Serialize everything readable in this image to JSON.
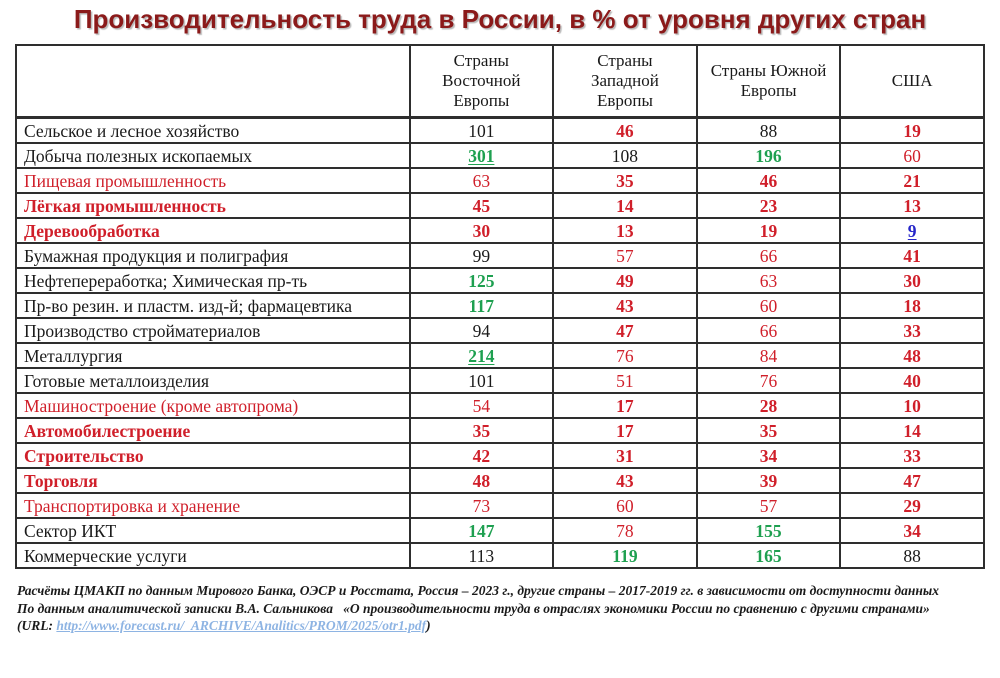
{
  "title": "Производительность труда в России, в % от уровня других стран",
  "colors": {
    "title_dark_red": "#8b1a1a",
    "value_red": "#d01f2a",
    "value_green": "#1ea050",
    "value_blue": "#2626c9",
    "text_black": "#1a1a1a",
    "link_blue": "#8eb4e3",
    "border": "#2e2e2e"
  },
  "table": {
    "columns": [
      "",
      "Страны Восточной Европы",
      "Страны Западной Европы",
      "Страны Южной Европы",
      "США"
    ],
    "rows": [
      {
        "label": "Сельское и лесное хозяйство",
        "label_style": "black",
        "values": [
          {
            "v": "101",
            "s": "black"
          },
          {
            "v": "46",
            "s": "red-b"
          },
          {
            "v": "88",
            "s": "black"
          },
          {
            "v": "19",
            "s": "red-b"
          }
        ]
      },
      {
        "label": "Добыча полезных ископаемых",
        "label_style": "black",
        "values": [
          {
            "v": "301",
            "s": "green-bu"
          },
          {
            "v": "108",
            "s": "black"
          },
          {
            "v": "196",
            "s": "green-b"
          },
          {
            "v": "60",
            "s": "red"
          }
        ]
      },
      {
        "label": "Пищевая промышленность",
        "label_style": "red",
        "values": [
          {
            "v": "63",
            "s": "red"
          },
          {
            "v": "35",
            "s": "red-b"
          },
          {
            "v": "46",
            "s": "red-b"
          },
          {
            "v": "21",
            "s": "red-b"
          }
        ]
      },
      {
        "label": "Лёгкая промышленность",
        "label_style": "red-b",
        "values": [
          {
            "v": "45",
            "s": "red-b"
          },
          {
            "v": "14",
            "s": "red-b"
          },
          {
            "v": "23",
            "s": "red-b"
          },
          {
            "v": "13",
            "s": "red-b"
          }
        ]
      },
      {
        "label": "Деревообработка",
        "label_style": "red-b",
        "values": [
          {
            "v": "30",
            "s": "red-b"
          },
          {
            "v": "13",
            "s": "red-b"
          },
          {
            "v": "19",
            "s": "red-b"
          },
          {
            "v": "9",
            "s": "blue-bu"
          }
        ]
      },
      {
        "label": "Бумажная продукция и полиграфия",
        "label_style": "black",
        "values": [
          {
            "v": "99",
            "s": "black"
          },
          {
            "v": "57",
            "s": "red"
          },
          {
            "v": "66",
            "s": "red"
          },
          {
            "v": "41",
            "s": "red-b"
          }
        ]
      },
      {
        "label": "Нефтепереработка; Химическая пр-ть",
        "label_style": "black",
        "values": [
          {
            "v": "125",
            "s": "green-b"
          },
          {
            "v": "49",
            "s": "red-b"
          },
          {
            "v": "63",
            "s": "red"
          },
          {
            "v": "30",
            "s": "red-b"
          }
        ]
      },
      {
        "label": "Пр-во резин. и пластм. изд-й; фармацевтика",
        "label_style": "black",
        "values": [
          {
            "v": "117",
            "s": "green-b"
          },
          {
            "v": "43",
            "s": "red-b"
          },
          {
            "v": "60",
            "s": "red"
          },
          {
            "v": "18",
            "s": "red-b"
          }
        ]
      },
      {
        "label": "Производство стройматериалов",
        "label_style": "black",
        "values": [
          {
            "v": "94",
            "s": "black"
          },
          {
            "v": "47",
            "s": "red-b"
          },
          {
            "v": "66",
            "s": "red"
          },
          {
            "v": "33",
            "s": "red-b"
          }
        ]
      },
      {
        "label": "Металлургия",
        "label_style": "black",
        "values": [
          {
            "v": "214",
            "s": "green-bu"
          },
          {
            "v": "76",
            "s": "red"
          },
          {
            "v": "84",
            "s": "red"
          },
          {
            "v": "48",
            "s": "red-b"
          }
        ]
      },
      {
        "label": "Готовые металлоизделия",
        "label_style": "black",
        "values": [
          {
            "v": "101",
            "s": "black"
          },
          {
            "v": "51",
            "s": "red"
          },
          {
            "v": "76",
            "s": "red"
          },
          {
            "v": "40",
            "s": "red-b"
          }
        ]
      },
      {
        "label": "Машиностроение (кроме автопрома)",
        "label_style": "red",
        "values": [
          {
            "v": "54",
            "s": "red"
          },
          {
            "v": "17",
            "s": "red-b"
          },
          {
            "v": "28",
            "s": "red-b"
          },
          {
            "v": "10",
            "s": "red-b"
          }
        ]
      },
      {
        "label": "Автомобилестроение",
        "label_style": "red-b",
        "values": [
          {
            "v": "35",
            "s": "red-b"
          },
          {
            "v": "17",
            "s": "red-b"
          },
          {
            "v": "35",
            "s": "red-b"
          },
          {
            "v": "14",
            "s": "red-b"
          }
        ]
      },
      {
        "label": "Строительство",
        "label_style": "red-b",
        "values": [
          {
            "v": "42",
            "s": "red-b"
          },
          {
            "v": "31",
            "s": "red-b"
          },
          {
            "v": "34",
            "s": "red-b"
          },
          {
            "v": "33",
            "s": "red-b"
          }
        ]
      },
      {
        "label": "Торговля",
        "label_style": "red-b",
        "values": [
          {
            "v": "48",
            "s": "red-b"
          },
          {
            "v": "43",
            "s": "red-b"
          },
          {
            "v": "39",
            "s": "red-b"
          },
          {
            "v": "47",
            "s": "red-b"
          }
        ]
      },
      {
        "label": "Транспортировка и хранение",
        "label_style": "red",
        "values": [
          {
            "v": "73",
            "s": "red"
          },
          {
            "v": "60",
            "s": "red"
          },
          {
            "v": "57",
            "s": "red"
          },
          {
            "v": "29",
            "s": "red-b"
          }
        ]
      },
      {
        "label": "Сектор ИКТ",
        "label_style": "black",
        "values": [
          {
            "v": "147",
            "s": "green-b"
          },
          {
            "v": "78",
            "s": "red"
          },
          {
            "v": "155",
            "s": "green-b"
          },
          {
            "v": "34",
            "s": "red-b"
          }
        ]
      },
      {
        "label": "Коммерческие услуги",
        "label_style": "black",
        "values": [
          {
            "v": "113",
            "s": "black"
          },
          {
            "v": "119",
            "s": "green-b"
          },
          {
            "v": "165",
            "s": "green-b"
          },
          {
            "v": "88",
            "s": "black"
          }
        ]
      }
    ]
  },
  "footnotes": [
    "Расчёты ЦМАКП по данным Мирового Банка, ОЭСР и Росстата, Россия – 2023 г., другие страны – 2017-2019 гг. в зависимости от доступности данных",
    "По данным аналитической записки В.А. Сальникова   «О производительности труда в отраслях экономики России по сравнению с другими странами»"
  ],
  "source": {
    "url_prefix": "(URL: ",
    "url": "http://www.forecast.ru/_ARCHIVE/Analitics/PROM/2025/otr1.pdf",
    "url_suffix": ")"
  }
}
